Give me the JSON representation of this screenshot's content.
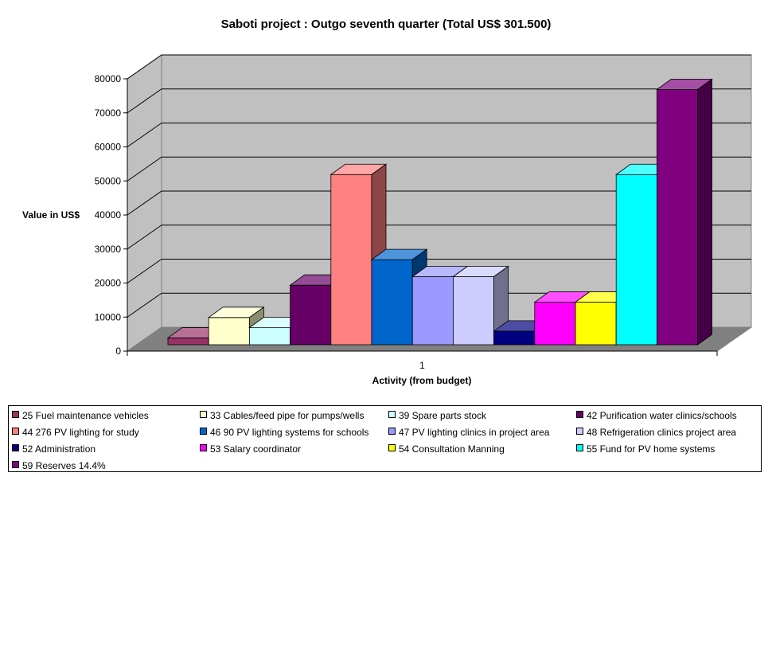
{
  "chart_data": {
    "type": "bar",
    "title": "Saboti project : Outgo seventh quarter (Total US$ 301.500)",
    "xlabel": "Activity (from budget)",
    "ylabel": "Value in US$",
    "categories": [
      "1"
    ],
    "ylim": [
      0,
      80000
    ],
    "yticks": [
      0,
      10000,
      20000,
      30000,
      40000,
      50000,
      60000,
      70000,
      80000
    ],
    "grid": true,
    "legend_position": "bottom",
    "series": [
      {
        "name": "25 Fuel maintenance vehicles",
        "values": [
          2000
        ],
        "color": "#993366"
      },
      {
        "name": "33 Cables/feed pipe for pumps/wells",
        "values": [
          8000
        ],
        "color": "#FFFFCC"
      },
      {
        "name": "39 Spare parts stock",
        "values": [
          5000
        ],
        "color": "#CCFFFF"
      },
      {
        "name": "42 Purification water clinics/schools",
        "values": [
          17500
        ],
        "color": "#660066"
      },
      {
        "name": "44 276 PV lighting for study",
        "values": [
          50000
        ],
        "color": "#FF8080"
      },
      {
        "name": "46 90 PV lighting systems for schools",
        "values": [
          25000
        ],
        "color": "#0066CC"
      },
      {
        "name": "47 PV lighting clinics in project area",
        "values": [
          20000
        ],
        "color": "#9999FF"
      },
      {
        "name": "48 Refrigeration clinics project area",
        "values": [
          20000
        ],
        "color": "#CCCCFF"
      },
      {
        "name": "52 Administration",
        "values": [
          4000
        ],
        "color": "#000080"
      },
      {
        "name": "53 Salary coordinator",
        "values": [
          12500
        ],
        "color": "#FF00FF"
      },
      {
        "name": "54 Consultation Manning",
        "values": [
          12500
        ],
        "color": "#FFFF00"
      },
      {
        "name": "55 Fund for PV home systems",
        "values": [
          50000
        ],
        "color": "#00FFFF"
      },
      {
        "name": "59 Reserves 14.4%",
        "values": [
          75000
        ],
        "color": "#800080"
      }
    ]
  }
}
